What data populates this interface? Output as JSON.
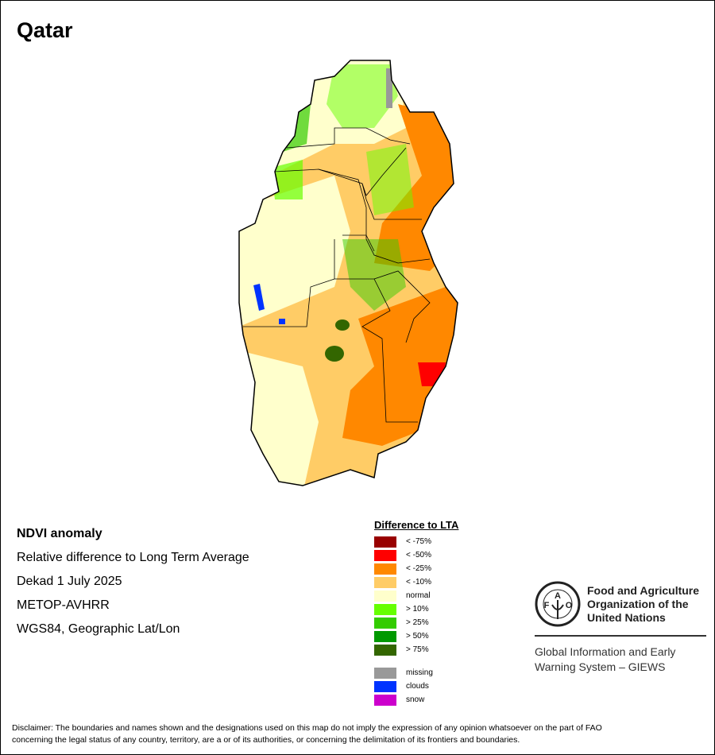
{
  "title": "Qatar",
  "info": {
    "heading": "NDVI anomaly",
    "line1": "Relative difference to Long Term Average",
    "line2": "Dekad 1 July 2025",
    "line3": "METOP-AVHRR",
    "line4": "WGS84, Geographic Lat/Lon"
  },
  "legend": {
    "title": "Difference to LTA",
    "items": [
      {
        "label": "< -75%",
        "color": "#990000"
      },
      {
        "label": "< -50%",
        "color": "#ff0000"
      },
      {
        "label": "< -25%",
        "color": "#ff8800"
      },
      {
        "label": "< -10%",
        "color": "#ffcc66"
      },
      {
        "label": "normal",
        "color": "#ffffcc"
      },
      {
        "label": "> 10%",
        "color": "#66ff00"
      },
      {
        "label": "> 25%",
        "color": "#33cc00"
      },
      {
        "label": "> 50%",
        "color": "#009900"
      },
      {
        "label": "> 75%",
        "color": "#336600"
      }
    ],
    "extra": [
      {
        "label": "missing",
        "color": "#999999"
      },
      {
        "label": "clouds",
        "color": "#0033ff"
      },
      {
        "label": "snow",
        "color": "#cc00cc"
      }
    ]
  },
  "fao": {
    "logo_text": "FAO FIAT PANIS",
    "name1": "Food and Agriculture",
    "name2": "Organization of the",
    "name3": "United Nations",
    "giews1": "Global Information and Early",
    "giews2": "Warning System – GIEWS"
  },
  "disclaimer": {
    "line1": "Disclaimer: The boundaries and names shown and the designations used on this map do not imply the expression of any opinion whatsoever on the part of FAO",
    "line2": "concerning the legal status of any country, territory, are a or of its authorities, or concerning the delimitation of its frontiers and boundaries."
  }
}
